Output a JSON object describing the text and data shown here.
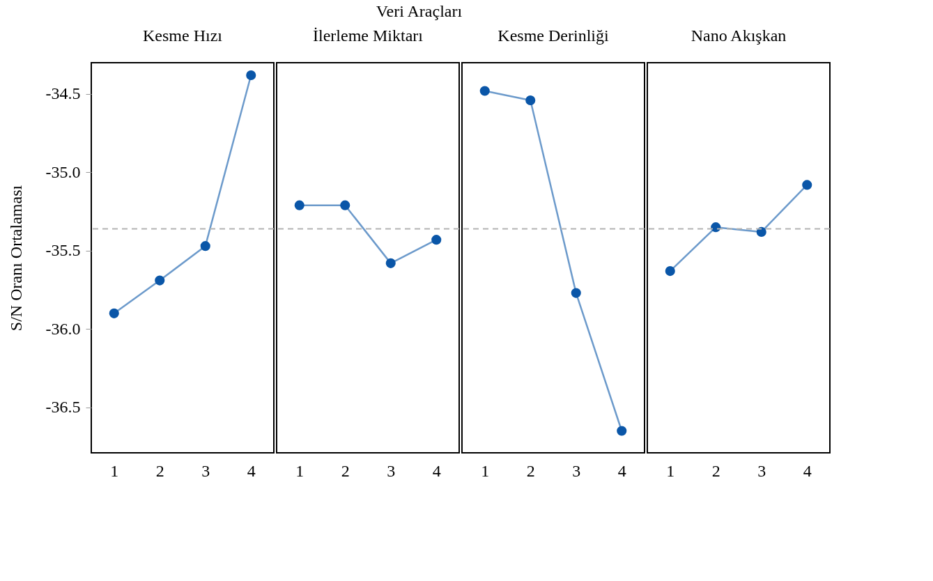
{
  "chart_data": [
    {
      "type": "line",
      "title": "Kesme Hızı",
      "ylabel": "S/N Oranı Ortalaması",
      "annotations": [
        "Veri Araçları"
      ],
      "categories": [
        "1",
        "2",
        "3",
        "4"
      ],
      "series": [
        {
          "color": "#0a56a8",
          "values": [
            -35.9,
            -35.69,
            -35.47,
            -34.38
          ]
        }
      ],
      "ylim": [
        -36.79,
        -34.3
      ],
      "yticks": [
        {
          "value": -34.5,
          "label": "-34.5"
        },
        {
          "value": -35,
          "label": "-35.0"
        },
        {
          "value": -35.5,
          "label": "-35.5"
        },
        {
          "value": -36,
          "label": "-36.0"
        },
        {
          "value": -36.5,
          "label": "-36.5"
        }
      ],
      "marker": "circle",
      "grid": false,
      "ref_lines": [
        {
          "axis": "y",
          "value": -35.36,
          "color": "#b4b4b4",
          "line_style": "dashed"
        }
      ]
    },
    {
      "type": "line",
      "title": "İlerleme Miktarı",
      "categories": [
        "1",
        "2",
        "3",
        "4"
      ],
      "series": [
        {
          "color": "#0a56a8",
          "values": [
            -35.21,
            -35.21,
            -35.58,
            -35.43
          ]
        }
      ],
      "ylim": [
        -36.79,
        -34.3
      ],
      "tick_labels": "x",
      "marker": "circle",
      "grid": false,
      "ref_lines": [
        {
          "axis": "y",
          "value": -35.36,
          "color": "#b4b4b4",
          "line_style": "dashed"
        }
      ]
    },
    {
      "type": "line",
      "title": "Kesme Derinliği",
      "categories": [
        "1",
        "2",
        "3",
        "4"
      ],
      "series": [
        {
          "color": "#0a56a8",
          "values": [
            -34.48,
            -34.54,
            -35.77,
            -36.65
          ]
        }
      ],
      "ylim": [
        -36.79,
        -34.3
      ],
      "tick_labels": "x",
      "marker": "circle",
      "grid": false,
      "ref_lines": [
        {
          "axis": "y",
          "value": -35.36,
          "color": "#b4b4b4",
          "line_style": "dashed"
        }
      ]
    },
    {
      "type": "line",
      "title": "Nano Akışkan",
      "categories": [
        "1",
        "2",
        "3",
        "4"
      ],
      "series": [
        {
          "color": "#0a56a8",
          "values": [
            -35.63,
            -35.35,
            -35.38,
            -35.08
          ]
        }
      ],
      "ylim": [
        -36.79,
        -34.3
      ],
      "tick_labels": "x",
      "marker": "circle",
      "grid": false,
      "ref_lines": [
        {
          "axis": "y",
          "value": -35.36,
          "color": "#b4b4b4",
          "line_style": "dashed"
        }
      ]
    }
  ]
}
